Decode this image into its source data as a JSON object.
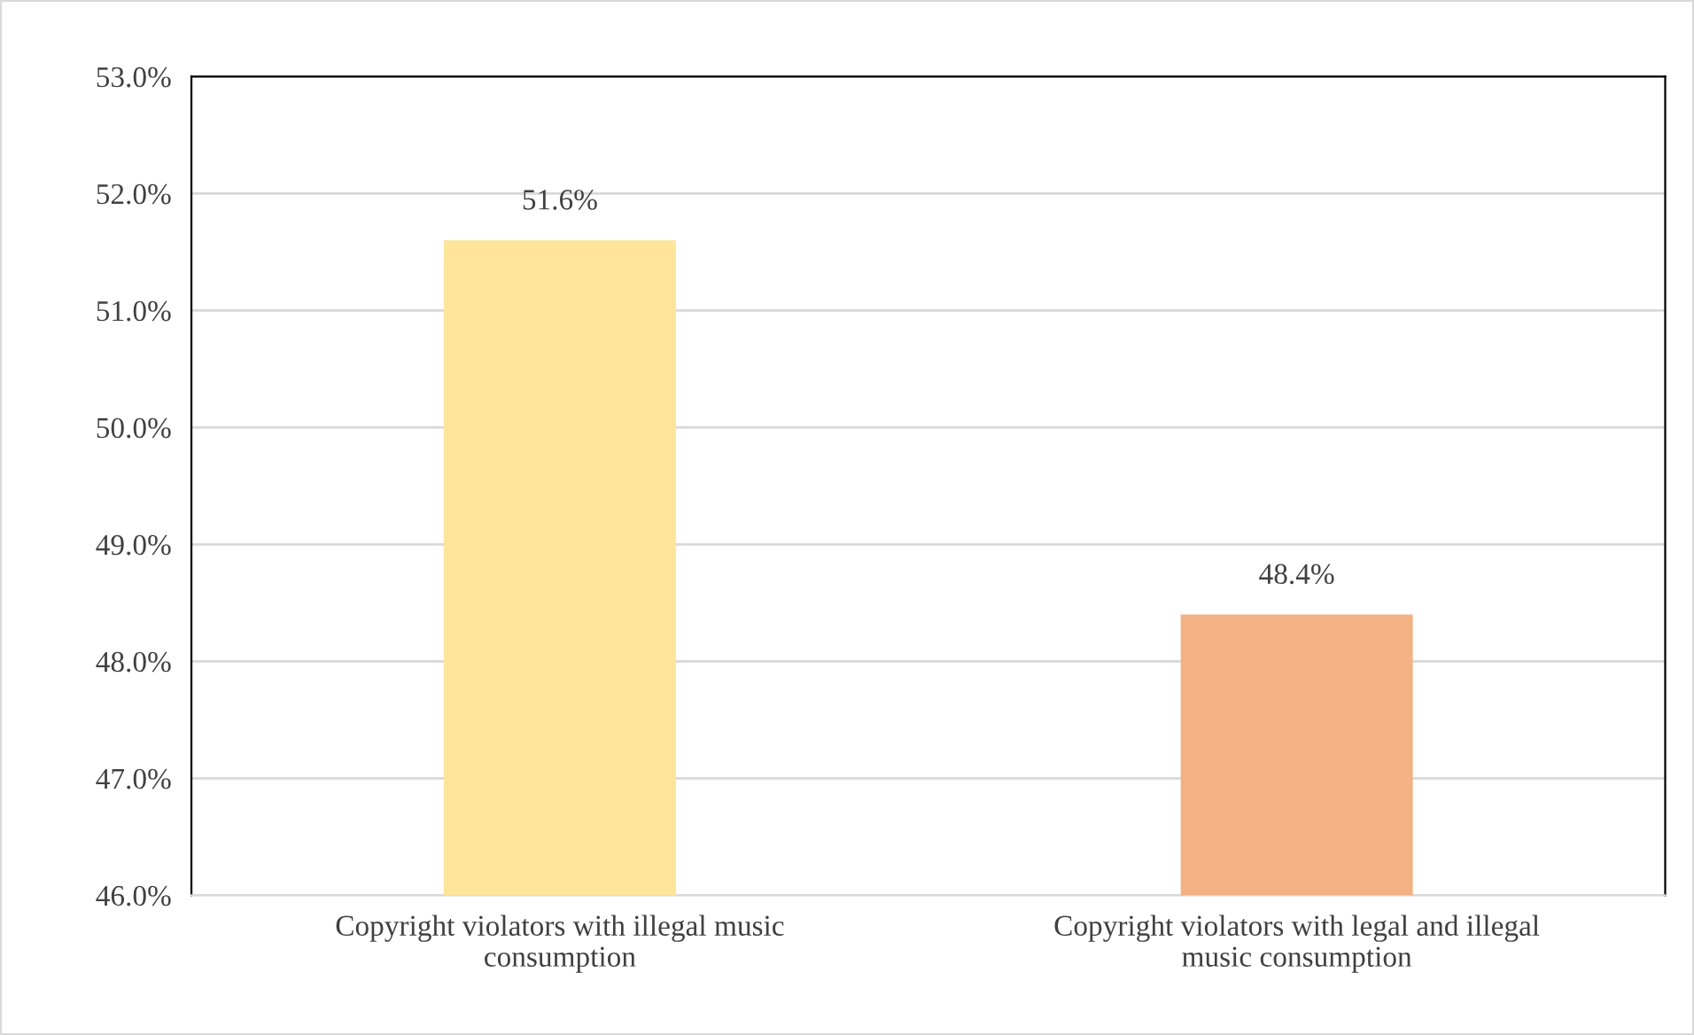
{
  "chart_data": {
    "type": "bar",
    "categories": [
      "Copyright violators with illegal music\nconsumption",
      "Copyright violators with legal and illegal\nmusic consumption"
    ],
    "values": [
      51.6,
      48.4
    ],
    "colors": [
      "#fee599",
      "#f4b183"
    ],
    "value_labels": [
      "51.6%",
      "48.4%"
    ],
    "ylim": [
      46,
      53
    ],
    "yticks": [
      {
        "value": 46,
        "label": "46.0%"
      },
      {
        "value": 47,
        "label": "47.0%"
      },
      {
        "value": 48,
        "label": "48.0%"
      },
      {
        "value": 49,
        "label": "49.0%"
      },
      {
        "value": 50,
        "label": "50.0%"
      },
      {
        "value": 51,
        "label": "51.0%"
      },
      {
        "value": 52,
        "label": "52.0%"
      },
      {
        "value": 53,
        "label": "53.0%"
      }
    ],
    "grid": "y",
    "legend": false
  }
}
